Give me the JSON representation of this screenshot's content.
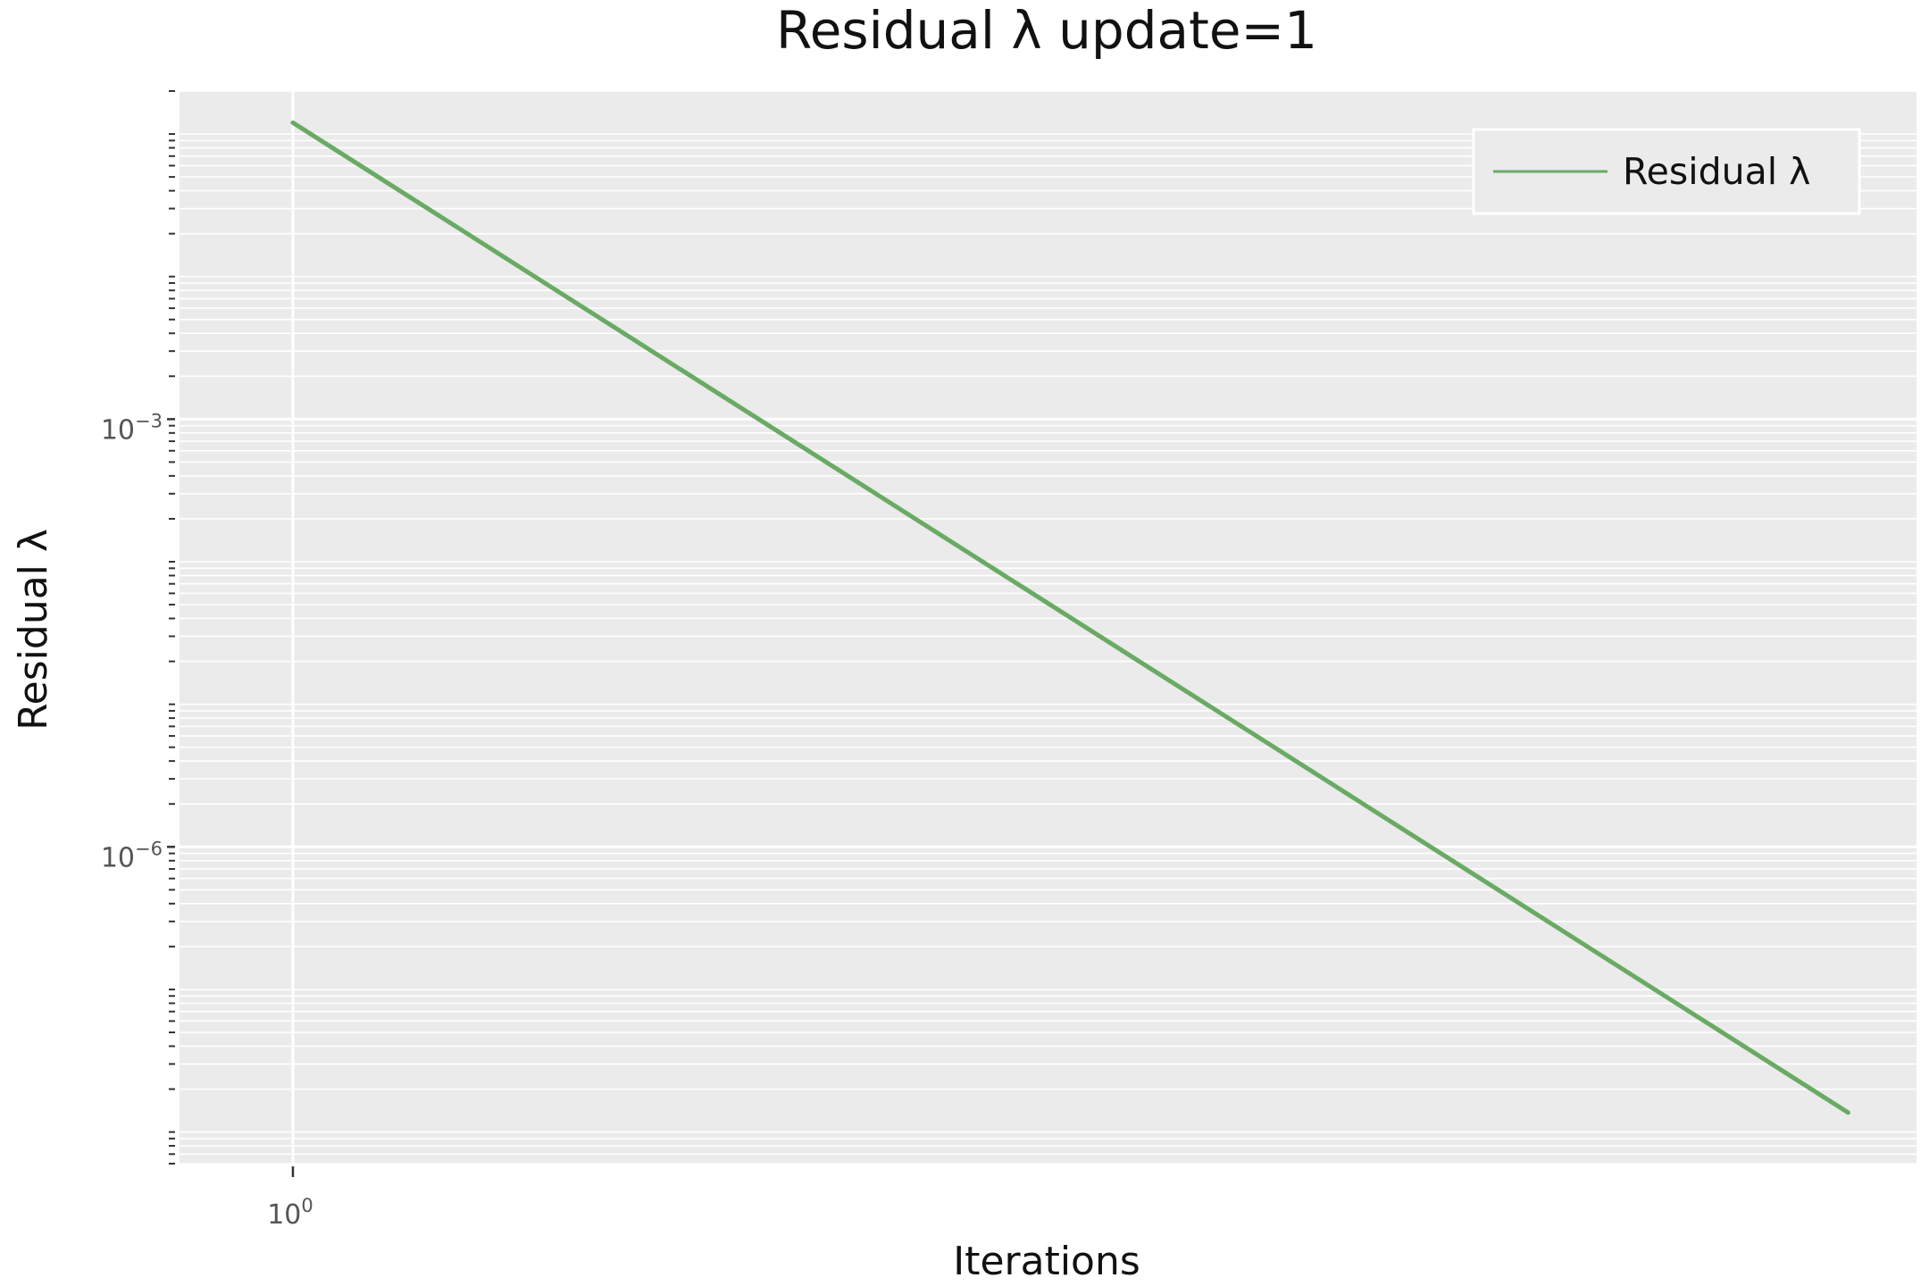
{
  "chart_data": {
    "type": "line",
    "title": "Residual λ update=1",
    "xlabel": "Iterations",
    "ylabel": "Residual λ",
    "x_scale": "log",
    "y_scale": "log",
    "xlim": [
      0.9976,
      1.035
    ],
    "ylim": [
      6e-09,
      0.2
    ],
    "x_ticks": [
      {
        "value": 1,
        "base": "10",
        "exp": "0"
      }
    ],
    "y_ticks": [
      {
        "value": 0.001,
        "base": "10",
        "exp": "−3"
      },
      {
        "value": 1e-06,
        "base": "10",
        "exp": "−6"
      }
    ],
    "grid": true,
    "legend": {
      "position": "top-right"
    },
    "series": [
      {
        "name": "Residual λ",
        "color": "#6aaa64",
        "x": [
          1,
          1.0335
        ],
        "y": [
          0.12,
          1.37e-08
        ]
      }
    ]
  }
}
